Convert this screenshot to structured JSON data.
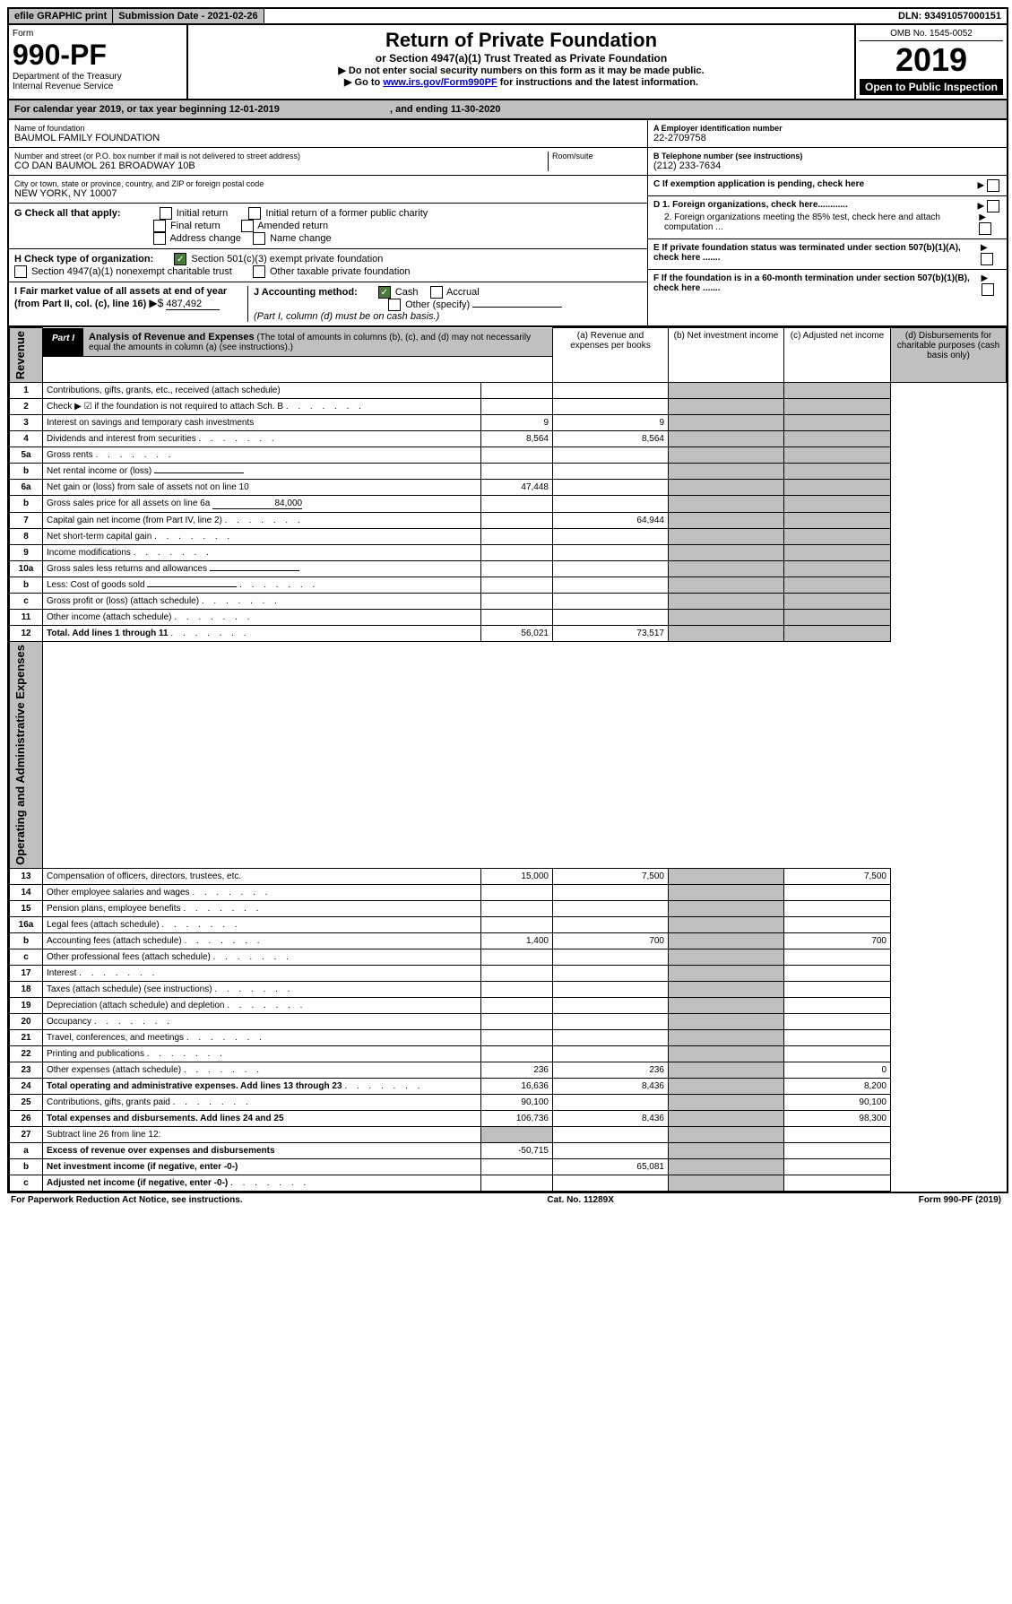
{
  "topbar": {
    "efile": "efile GRAPHIC print",
    "subdate_label": "Submission Date - 2021-02-26",
    "dln": "DLN: 93491057000151"
  },
  "header": {
    "form_word": "Form",
    "form_num": "990-PF",
    "dept": "Department of the Treasury",
    "irs": "Internal Revenue Service",
    "title": "Return of Private Foundation",
    "subtitle": "or Section 4947(a)(1) Trust Treated as Private Foundation",
    "note1": "▶ Do not enter social security numbers on this form as it may be made public.",
    "note2_pre": "▶ Go to ",
    "note2_link": "www.irs.gov/Form990PF",
    "note2_post": " for instructions and the latest information.",
    "omb": "OMB No. 1545-0052",
    "year": "2019",
    "inspect": "Open to Public Inspection"
  },
  "cal": {
    "text": "For calendar year 2019, or tax year beginning 12-01-2019",
    "end": ", and ending 11-30-2020"
  },
  "name": {
    "label": "Name of foundation",
    "value": "BAUMOL FAMILY FOUNDATION"
  },
  "ein": {
    "label": "A Employer identification number",
    "value": "22-2709758"
  },
  "addr": {
    "label": "Number and street (or P.O. box number if mail is not delivered to street address)",
    "value": "CO DAN BAUMOL 261 BROADWAY 10B",
    "room": "Room/suite"
  },
  "phone": {
    "label": "B Telephone number (see instructions)",
    "value": "(212) 233-7634"
  },
  "city": {
    "label": "City or town, state or province, country, and ZIP or foreign postal code",
    "value": "NEW YORK, NY  10007"
  },
  "c": {
    "text": "C If exemption application is pending, check here"
  },
  "g": {
    "label": "G Check all that apply:",
    "opts": [
      "Initial return",
      "Initial return of a former public charity",
      "Final return",
      "Amended return",
      "Address change",
      "Name change"
    ]
  },
  "d": {
    "d1": "D 1. Foreign organizations, check here............",
    "d2": "2. Foreign organizations meeting the 85% test, check here and attach computation ..."
  },
  "h": {
    "label": "H Check type of organization:",
    "opts": [
      "Section 501(c)(3) exempt private foundation",
      "Section 4947(a)(1) nonexempt charitable trust",
      "Other taxable private foundation"
    ]
  },
  "e": {
    "text": "E If private foundation status was terminated under section 507(b)(1)(A), check here ......."
  },
  "i": {
    "label": "I Fair market value of all assets at end of year (from Part II, col. (c), line 16)",
    "arrow": "▶$",
    "value": "487,492"
  },
  "j": {
    "label": "J Accounting method:",
    "cash": "Cash",
    "accrual": "Accrual",
    "other": "Other (specify)",
    "note": "(Part I, column (d) must be on cash basis.)"
  },
  "f": {
    "text": "F If the foundation is in a 60-month termination under section 507(b)(1)(B), check here ......."
  },
  "part1": {
    "label": "Part I",
    "title": "Analysis of Revenue and Expenses",
    "sub": "(The total of amounts in columns (b), (c), and (d) may not necessarily equal the amounts in column (a) (see instructions).)",
    "cols": {
      "a": "(a) Revenue and expenses per books",
      "b": "(b) Net investment income",
      "c": "(c) Adjusted net income",
      "d": "(d) Disbursements for charitable purposes (cash basis only)"
    }
  },
  "side": {
    "rev": "Revenue",
    "exp": "Operating and Administrative Expenses"
  },
  "rows": [
    {
      "n": "1",
      "d": "Contributions, gifts, grants, etc., received (attach schedule)",
      "a": "",
      "b": "",
      "c": "",
      "dd": ""
    },
    {
      "n": "2",
      "d": "Check ▶ ☑ if the foundation is not required to attach Sch. B",
      "dots": true,
      "a": "",
      "b": "",
      "c": "",
      "dd": ""
    },
    {
      "n": "3",
      "d": "Interest on savings and temporary cash investments",
      "a": "9",
      "b": "9",
      "c": "",
      "dd": ""
    },
    {
      "n": "4",
      "d": "Dividends and interest from securities",
      "dots": true,
      "a": "8,564",
      "b": "8,564",
      "c": "",
      "dd": ""
    },
    {
      "n": "5a",
      "d": "Gross rents",
      "dots": true,
      "a": "",
      "b": "",
      "c": "",
      "dd": ""
    },
    {
      "n": "b",
      "d": "Net rental income or (loss)",
      "inline": true,
      "a": "",
      "b": "",
      "c": "",
      "dd": ""
    },
    {
      "n": "6a",
      "d": "Net gain or (loss) from sale of assets not on line 10",
      "a": "47,448",
      "b": "",
      "c": "",
      "dd": ""
    },
    {
      "n": "b",
      "d": "Gross sales price for all assets on line 6a",
      "inline": true,
      "ival": "84,000",
      "a": "",
      "b": "",
      "c": "",
      "dd": ""
    },
    {
      "n": "7",
      "d": "Capital gain net income (from Part IV, line 2)",
      "dots": true,
      "a": "",
      "b": "64,944",
      "c": "",
      "dd": ""
    },
    {
      "n": "8",
      "d": "Net short-term capital gain",
      "dots": true,
      "a": "",
      "b": "",
      "c": "",
      "dd": ""
    },
    {
      "n": "9",
      "d": "Income modifications",
      "dots": true,
      "a": "",
      "b": "",
      "c": "",
      "dd": ""
    },
    {
      "n": "10a",
      "d": "Gross sales less returns and allowances",
      "inline": true,
      "a": "",
      "b": "",
      "c": "",
      "dd": ""
    },
    {
      "n": "b",
      "d": "Less: Cost of goods sold",
      "dots": true,
      "inline": true,
      "a": "",
      "b": "",
      "c": "",
      "dd": ""
    },
    {
      "n": "c",
      "d": "Gross profit or (loss) (attach schedule)",
      "dots": true,
      "a": "",
      "b": "",
      "c": "",
      "dd": ""
    },
    {
      "n": "11",
      "d": "Other income (attach schedule)",
      "dots": true,
      "a": "",
      "b": "",
      "c": "",
      "dd": ""
    },
    {
      "n": "12",
      "d": "Total. Add lines 1 through 11",
      "dots": true,
      "bold": true,
      "a": "56,021",
      "b": "73,517",
      "c": "",
      "dd": ""
    },
    {
      "n": "13",
      "d": "Compensation of officers, directors, trustees, etc.",
      "a": "15,000",
      "b": "7,500",
      "c": "",
      "dd": "7,500"
    },
    {
      "n": "14",
      "d": "Other employee salaries and wages",
      "dots": true,
      "a": "",
      "b": "",
      "c": "",
      "dd": ""
    },
    {
      "n": "15",
      "d": "Pension plans, employee benefits",
      "dots": true,
      "a": "",
      "b": "",
      "c": "",
      "dd": ""
    },
    {
      "n": "16a",
      "d": "Legal fees (attach schedule)",
      "dots": true,
      "a": "",
      "b": "",
      "c": "",
      "dd": ""
    },
    {
      "n": "b",
      "d": "Accounting fees (attach schedule)",
      "dots": true,
      "a": "1,400",
      "b": "700",
      "c": "",
      "dd": "700"
    },
    {
      "n": "c",
      "d": "Other professional fees (attach schedule)",
      "dots": true,
      "a": "",
      "b": "",
      "c": "",
      "dd": ""
    },
    {
      "n": "17",
      "d": "Interest",
      "dots": true,
      "a": "",
      "b": "",
      "c": "",
      "dd": ""
    },
    {
      "n": "18",
      "d": "Taxes (attach schedule) (see instructions)",
      "dots": true,
      "a": "",
      "b": "",
      "c": "",
      "dd": ""
    },
    {
      "n": "19",
      "d": "Depreciation (attach schedule) and depletion",
      "dots": true,
      "a": "",
      "b": "",
      "c": "",
      "dd": ""
    },
    {
      "n": "20",
      "d": "Occupancy",
      "dots": true,
      "a": "",
      "b": "",
      "c": "",
      "dd": ""
    },
    {
      "n": "21",
      "d": "Travel, conferences, and meetings",
      "dots": true,
      "a": "",
      "b": "",
      "c": "",
      "dd": ""
    },
    {
      "n": "22",
      "d": "Printing and publications",
      "dots": true,
      "a": "",
      "b": "",
      "c": "",
      "dd": ""
    },
    {
      "n": "23",
      "d": "Other expenses (attach schedule)",
      "dots": true,
      "a": "236",
      "b": "236",
      "c": "",
      "dd": "0"
    },
    {
      "n": "24",
      "d": "Total operating and administrative expenses. Add lines 13 through 23",
      "dots": true,
      "bold": true,
      "a": "16,636",
      "b": "8,436",
      "c": "",
      "dd": "8,200"
    },
    {
      "n": "25",
      "d": "Contributions, gifts, grants paid",
      "dots": true,
      "a": "90,100",
      "b": "",
      "c": "",
      "dd": "90,100"
    },
    {
      "n": "26",
      "d": "Total expenses and disbursements. Add lines 24 and 25",
      "bold": true,
      "a": "106,736",
      "b": "8,436",
      "c": "",
      "dd": "98,300"
    },
    {
      "n": "27",
      "d": "Subtract line 26 from line 12:",
      "a": "",
      "b": "",
      "c": "",
      "dd": "",
      "shadeA": true
    },
    {
      "n": "a",
      "d": "Excess of revenue over expenses and disbursements",
      "bold": true,
      "a": "-50,715",
      "b": "",
      "c": "",
      "dd": ""
    },
    {
      "n": "b",
      "d": "Net investment income (if negative, enter -0-)",
      "bold": true,
      "a": "",
      "b": "65,081",
      "c": "",
      "dd": ""
    },
    {
      "n": "c",
      "d": "Adjusted net income (if negative, enter -0-)",
      "dots": true,
      "bold": true,
      "a": "",
      "b": "",
      "c": "",
      "dd": ""
    }
  ],
  "footer": {
    "left": "For Paperwork Reduction Act Notice, see instructions.",
    "mid": "Cat. No. 11289X",
    "right": "Form 990-PF (2019)"
  }
}
